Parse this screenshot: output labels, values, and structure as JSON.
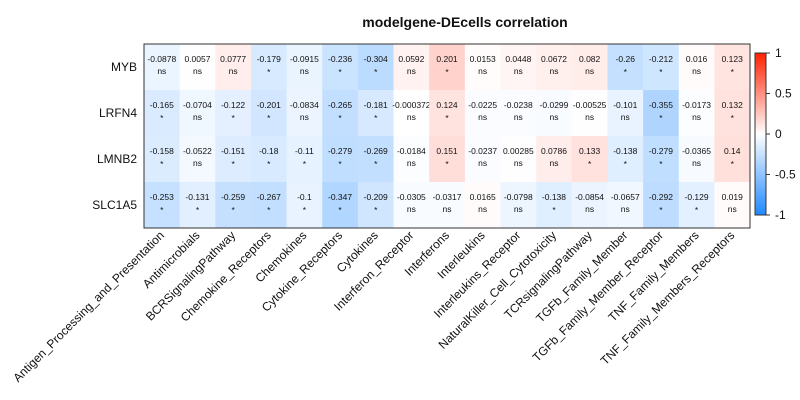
{
  "chart_data": {
    "type": "heatmap",
    "title": "modelgene-DEcells correlation",
    "rows": [
      "MYB",
      "LRFN4",
      "LMNB2",
      "SLC1A5"
    ],
    "columns": [
      "Antigen_Processing_and_Presentation",
      "Antimicrobials",
      "BCRSignalingPathway",
      "Chemokine_Receptors",
      "Chemokines",
      "Cytokine_Receptors",
      "Cytokines",
      "Interferon_Receptor",
      "Interferons",
      "Interleukins",
      "Interleukins_Receptor",
      "NaturalKiller_Cell_Cytotoxicity",
      "TCRsignalingPathway",
      "TGFb_Family_Member",
      "TGFb_Family_Member_Receptor",
      "TNF_Family_Members",
      "TNF_Family_Members_Receptors"
    ],
    "values": [
      [
        -0.0878,
        0.0057,
        0.0777,
        -0.179,
        -0.0915,
        -0.236,
        -0.304,
        0.0592,
        0.201,
        0.0153,
        0.0448,
        0.0672,
        0.082,
        -0.26,
        -0.212,
        0.016,
        0.123
      ],
      [
        -0.165,
        -0.0704,
        -0.122,
        -0.201,
        -0.0834,
        -0.265,
        -0.181,
        -0.000372,
        0.124,
        -0.0225,
        -0.0238,
        -0.0299,
        -0.00525,
        -0.101,
        -0.355,
        -0.0173,
        0.132
      ],
      [
        -0.158,
        -0.0522,
        -0.151,
        -0.18,
        -0.11,
        -0.279,
        -0.269,
        -0.0184,
        0.151,
        -0.0237,
        0.00285,
        0.0786,
        0.133,
        -0.138,
        -0.279,
        -0.0365,
        0.14
      ],
      [
        -0.253,
        -0.131,
        -0.259,
        -0.267,
        -0.1,
        -0.347,
        -0.209,
        -0.0305,
        -0.0317,
        0.0165,
        -0.0798,
        -0.138,
        -0.0854,
        -0.0657,
        -0.292,
        -0.129,
        0.019
      ]
    ],
    "value_labels": [
      [
        "-0.0878",
        "0.0057",
        "0.0777",
        "-0.179",
        "-0.0915",
        "-0.236",
        "-0.304",
        "0.0592",
        "0.201",
        "0.0153",
        "0.0448",
        "0.0672",
        "0.082",
        "-0.26",
        "-0.212",
        "0.016",
        "0.123"
      ],
      [
        "-0.165",
        "-0.0704",
        "-0.122",
        "-0.201",
        "-0.0834",
        "-0.265",
        "-0.181",
        "-0.000372",
        "0.124",
        "-0.0225",
        "-0.0238",
        "-0.0299",
        "-0.00525",
        "-0.101",
        "-0.355",
        "-0.0173",
        "0.132"
      ],
      [
        "-0.158",
        "-0.0522",
        "-0.151",
        "-0.18",
        "-0.11",
        "-0.279",
        "-0.269",
        "-0.0184",
        "0.151",
        "-0.0237",
        "0.00285",
        "0.0786",
        "0.133",
        "-0.138",
        "-0.279",
        "-0.0365",
        "0.14"
      ],
      [
        "-0.253",
        "-0.131",
        "-0.259",
        "-0.267",
        "-0.1",
        "-0.347",
        "-0.209",
        "-0.0305",
        "-0.0317",
        "0.0165",
        "-0.0798",
        "-0.138",
        "-0.0854",
        "-0.0657",
        "-0.292",
        "-0.129",
        "0.019"
      ]
    ],
    "significance": [
      [
        "ns",
        "ns",
        "ns",
        "*",
        "ns",
        "*",
        "*",
        "ns",
        "*",
        "ns",
        "ns",
        "ns",
        "ns",
        "*",
        "*",
        "ns",
        "*"
      ],
      [
        "*",
        "ns",
        "*",
        "*",
        "ns",
        "*",
        "*",
        "ns",
        "*",
        "ns",
        "ns",
        "ns",
        "ns",
        "ns",
        "*",
        "ns",
        "*"
      ],
      [
        "*",
        "ns",
        "*",
        "*",
        "*",
        "*",
        "*",
        "ns",
        "*",
        "ns",
        "ns",
        "ns",
        "*",
        "*",
        "*",
        "ns",
        "*"
      ],
      [
        "*",
        "*",
        "*",
        "*",
        "*",
        "*",
        "*",
        "ns",
        "ns",
        "ns",
        "ns",
        "*",
        "ns",
        "ns",
        "*",
        "*",
        "ns"
      ]
    ],
    "colorscale": {
      "range": [
        -1,
        1
      ],
      "low_color": "#1E88FF",
      "mid_color": "#FFFFFF",
      "high_color": "#FF2000",
      "ticks": [
        1,
        0.5,
        0,
        -0.5,
        -1
      ],
      "tick_labels": [
        "1",
        "0.5",
        "0",
        "-0.5",
        "-1"
      ]
    },
    "legend_position": "right"
  }
}
